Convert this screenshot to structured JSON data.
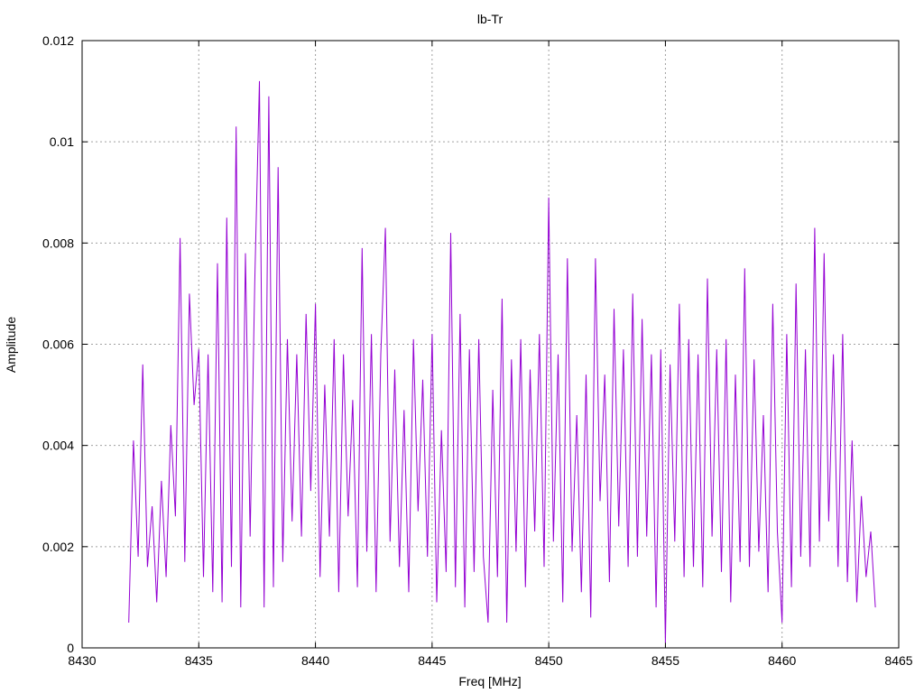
{
  "chart_data": {
    "type": "line",
    "title": "lb-Tr",
    "xlabel": "Freq [MHz]",
    "ylabel": "Amplitude",
    "xlim": [
      8430,
      8465
    ],
    "ylim": [
      0,
      0.012
    ],
    "grid": true,
    "legend": "none",
    "line_color": "#9400d3",
    "x_ticks": [
      "8430",
      "8435",
      "8440",
      "8445",
      "8450",
      "8455",
      "8460",
      "8465"
    ],
    "y_ticks": [
      "0",
      "0.002",
      "0.004",
      "0.006",
      "0.008",
      "0.01",
      "0.012"
    ],
    "series": [
      {
        "x": [
          8432.0,
          8432.2,
          8432.4,
          8432.6,
          8432.8,
          8433.0,
          8433.2,
          8433.4,
          8433.6,
          8433.8,
          8434.0,
          8434.2,
          8434.4,
          8434.6,
          8434.8,
          8435.0,
          8435.2,
          8435.4,
          8435.6,
          8435.8,
          8436.0,
          8436.2,
          8436.4,
          8436.6,
          8436.8,
          8437.0,
          8437.2,
          8437.4,
          8437.6,
          8437.8,
          8438.0,
          8438.2,
          8438.4,
          8438.6,
          8438.8,
          8439.0,
          8439.2,
          8439.4,
          8439.6,
          8439.8,
          8440.0,
          8440.2,
          8440.4,
          8440.6,
          8440.8,
          8441.0,
          8441.2,
          8441.4,
          8441.6,
          8441.8,
          8442.0,
          8442.2,
          8442.4,
          8442.6,
          8442.8,
          8443.0,
          8443.2,
          8443.4,
          8443.6,
          8443.8,
          8444.0,
          8444.2,
          8444.4,
          8444.6,
          8444.8,
          8445.0,
          8445.2,
          8445.4,
          8445.6,
          8445.8,
          8446.0,
          8446.2,
          8446.4,
          8446.6,
          8446.8,
          8447.0,
          8447.2,
          8447.4,
          8447.6,
          8447.8,
          8448.0,
          8448.2,
          8448.4,
          8448.6,
          8448.8,
          8449.0,
          8449.2,
          8449.4,
          8449.6,
          8449.8,
          8450.0,
          8450.2,
          8450.4,
          8450.6,
          8450.8,
          8451.0,
          8451.2,
          8451.4,
          8451.6,
          8451.8,
          8452.0,
          8452.2,
          8452.4,
          8452.6,
          8452.8,
          8453.0,
          8453.2,
          8453.4,
          8453.6,
          8453.8,
          8454.0,
          8454.2,
          8454.4,
          8454.6,
          8454.8,
          8455.0,
          8455.2,
          8455.4,
          8455.6,
          8455.8,
          8456.0,
          8456.2,
          8456.4,
          8456.6,
          8456.8,
          8457.0,
          8457.2,
          8457.4,
          8457.6,
          8457.8,
          8458.0,
          8458.2,
          8458.4,
          8458.6,
          8458.8,
          8459.0,
          8459.2,
          8459.4,
          8459.6,
          8459.8,
          8460.0,
          8460.2,
          8460.4,
          8460.6,
          8460.8,
          8461.0,
          8461.2,
          8461.4,
          8461.6,
          8461.8,
          8462.0,
          8462.2,
          8462.4,
          8462.6,
          8462.8,
          8463.0,
          8463.2,
          8463.4,
          8463.6,
          8463.8,
          8464.0
        ],
        "y": [
          0.0005,
          0.0041,
          0.0018,
          0.0056,
          0.0016,
          0.0028,
          0.0009,
          0.0033,
          0.0014,
          0.0044,
          0.0026,
          0.0081,
          0.0017,
          0.007,
          0.0048,
          0.0059,
          0.0014,
          0.0058,
          0.0011,
          0.0076,
          0.0009,
          0.0085,
          0.0016,
          0.0103,
          0.0008,
          0.0078,
          0.0022,
          0.0072,
          0.0112,
          0.0008,
          0.0109,
          0.0012,
          0.0095,
          0.0017,
          0.0061,
          0.0025,
          0.0058,
          0.0022,
          0.0066,
          0.0031,
          0.0068,
          0.0014,
          0.0052,
          0.0022,
          0.0061,
          0.0011,
          0.0058,
          0.0026,
          0.0049,
          0.0012,
          0.0079,
          0.0019,
          0.0062,
          0.0011,
          0.0058,
          0.0083,
          0.0021,
          0.0055,
          0.0016,
          0.0047,
          0.0011,
          0.0061,
          0.0027,
          0.0053,
          0.0018,
          0.0062,
          0.0009,
          0.0043,
          0.0015,
          0.0082,
          0.0012,
          0.0066,
          0.0008,
          0.0059,
          0.0015,
          0.0061,
          0.0018,
          0.0005,
          0.0051,
          0.0014,
          0.0069,
          0.0005,
          0.0057,
          0.0019,
          0.0061,
          0.0012,
          0.0055,
          0.0023,
          0.0062,
          0.0016,
          0.0089,
          0.0021,
          0.0058,
          0.0009,
          0.0077,
          0.0019,
          0.0046,
          0.0011,
          0.0054,
          0.0006,
          0.0077,
          0.0029,
          0.0054,
          0.0013,
          0.0067,
          0.0024,
          0.0059,
          0.0016,
          0.007,
          0.0018,
          0.0065,
          0.0022,
          0.0058,
          0.0008,
          0.0059,
          0.0001,
          0.0056,
          0.0021,
          0.0068,
          0.0014,
          0.0061,
          0.0016,
          0.0058,
          0.0012,
          0.0073,
          0.0022,
          0.0059,
          0.0015,
          0.0061,
          0.0009,
          0.0054,
          0.0017,
          0.0075,
          0.0016,
          0.0057,
          0.0019,
          0.0046,
          0.0011,
          0.0068,
          0.0023,
          0.0005,
          0.0062,
          0.0012,
          0.0072,
          0.0018,
          0.0059,
          0.0016,
          0.0083,
          0.0021,
          0.0078,
          0.0025,
          0.0058,
          0.0016,
          0.0062,
          0.0013,
          0.0041,
          0.0009,
          0.003,
          0.0014,
          0.0023,
          0.0008
        ]
      }
    ]
  }
}
